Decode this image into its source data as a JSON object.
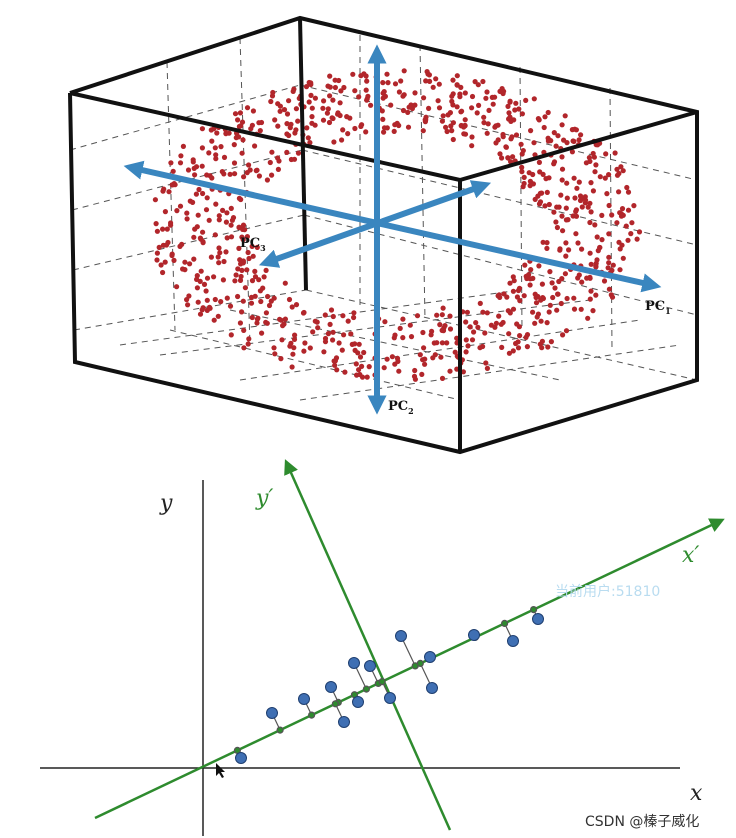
{
  "top_figure": {
    "pc_labels": {
      "pc1": {
        "main": "PC",
        "sub": "1"
      },
      "pc2": {
        "main": "PC",
        "sub": "2"
      },
      "pc3": {
        "main": "PC",
        "sub": "3"
      }
    },
    "colors": {
      "points": "#b2262b",
      "arrows": "#3a86bf",
      "box_edges": "#111111",
      "grid": "#555555"
    }
  },
  "bottom_figure": {
    "axis_labels": {
      "x": "x",
      "y": "y",
      "x_prime": "x′",
      "y_prime": "y′"
    },
    "colors": {
      "axes": "#222222",
      "rotated_axes": "#2e8b2e",
      "points": "#3f6fb3",
      "projections": "#555555"
    }
  },
  "watermarks": {
    "user": "当前用户:51810",
    "csdn": "CSDN @榛子威化"
  }
}
